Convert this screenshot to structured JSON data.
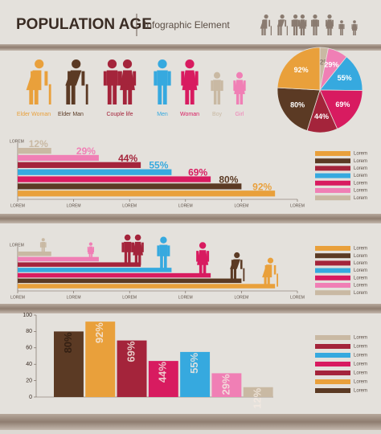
{
  "header": {
    "title": "POPULATION AGE",
    "subtitle": "Infographic Element"
  },
  "icons": {
    "labels": [
      "Elder Woman",
      "Elder Man",
      "Couple life",
      "Men",
      "Woman",
      "Boy",
      "Girl"
    ],
    "colors": [
      "#e9a03b",
      "#5b3a24",
      "#a4243b",
      "#36a9df",
      "#d81b60",
      "#c9b9a3",
      "#f07fb5"
    ]
  },
  "chart_data": [
    {
      "type": "pie",
      "values": [
        12,
        29,
        55,
        69,
        44,
        80,
        92
      ],
      "value_labels": [
        "12%",
        "29%",
        "55%",
        "69%",
        "44%",
        "80%",
        "92%"
      ],
      "colors": [
        "#c9b9a3",
        "#f07fb5",
        "#36a9df",
        "#d81b60",
        "#a4243b",
        "#5b3a24",
        "#e9a03b"
      ]
    },
    {
      "type": "bar",
      "orientation": "horizontal",
      "y_label": "LOREM",
      "values": [
        12,
        29,
        44,
        55,
        69,
        80,
        92
      ],
      "value_labels": [
        "12%",
        "29%",
        "44%",
        "55%",
        "69%",
        "80%",
        "92%"
      ],
      "colors": [
        "#c9b9a3",
        "#f07fb5",
        "#a4243b",
        "#36a9df",
        "#d81b60",
        "#5b3a24",
        "#e9a03b"
      ],
      "xlim": [
        0,
        100
      ],
      "xticks": [
        {
          "value": 0,
          "label": "LOREM"
        },
        {
          "value": 20,
          "label": "LOREM"
        },
        {
          "value": 40,
          "label": "LOREM"
        },
        {
          "value": 60,
          "label": "LOREM"
        },
        {
          "value": 80,
          "label": "LOREM"
        },
        {
          "value": 100,
          "label": "LOREM"
        }
      ],
      "legend": {
        "labels": [
          "Lorem",
          "Lorem",
          "Lorem",
          "Lorem",
          "Lorem",
          "Lorem",
          "Lorem"
        ],
        "colors": [
          "#e9a03b",
          "#5b3a24",
          "#a4243b",
          "#36a9df",
          "#d81b60",
          "#f07fb5",
          "#c9b9a3"
        ]
      }
    },
    {
      "type": "bar",
      "orientation": "horizontal",
      "y_label": "LOREM",
      "values": [
        12,
        29,
        44,
        55,
        69,
        80,
        92
      ],
      "colors": [
        "#c9b9a3",
        "#f07fb5",
        "#a4243b",
        "#36a9df",
        "#d81b60",
        "#5b3a24",
        "#e9a03b"
      ],
      "xlim": [
        0,
        100
      ],
      "xticks": [
        {
          "value": 0,
          "label": "LOREM"
        },
        {
          "value": 20,
          "label": "LOREM"
        },
        {
          "value": 40,
          "label": "LOREM"
        },
        {
          "value": 60,
          "label": "LOREM"
        },
        {
          "value": 80,
          "label": "LOREM"
        },
        {
          "value": 100,
          "label": "LOREM"
        }
      ],
      "legend": {
        "labels": [
          "Lorem",
          "Lorem",
          "Lorem",
          "Lorem",
          "Lorem",
          "Lorem",
          "Lorem"
        ],
        "colors": [
          "#e9a03b",
          "#5b3a24",
          "#a4243b",
          "#36a9df",
          "#d81b60",
          "#f07fb5",
          "#c9b9a3"
        ]
      }
    },
    {
      "type": "bar",
      "orientation": "vertical",
      "values": [
        80,
        92,
        69,
        44,
        55,
        29,
        12
      ],
      "value_labels": [
        "80%",
        "92%",
        "69%",
        "44%",
        "55%",
        "29%",
        "12%"
      ],
      "colors": [
        "#5b3a24",
        "#e9a03b",
        "#a4243b",
        "#d81b60",
        "#36a9df",
        "#f07fb5",
        "#c9b9a3"
      ],
      "ylim": [
        0,
        100
      ],
      "yticks": [
        0,
        20,
        40,
        60,
        80,
        100
      ],
      "legend": {
        "labels": [
          "Lorem",
          "Lorem",
          "Lorem",
          "Lorem",
          "Lorem",
          "Lorem",
          "Lorem"
        ],
        "colors": [
          "#c9b9a3",
          "#a4243b",
          "#36a9df",
          "#d81b60",
          "#a4243b",
          "#e9a03b",
          "#5b3a24"
        ]
      }
    }
  ]
}
